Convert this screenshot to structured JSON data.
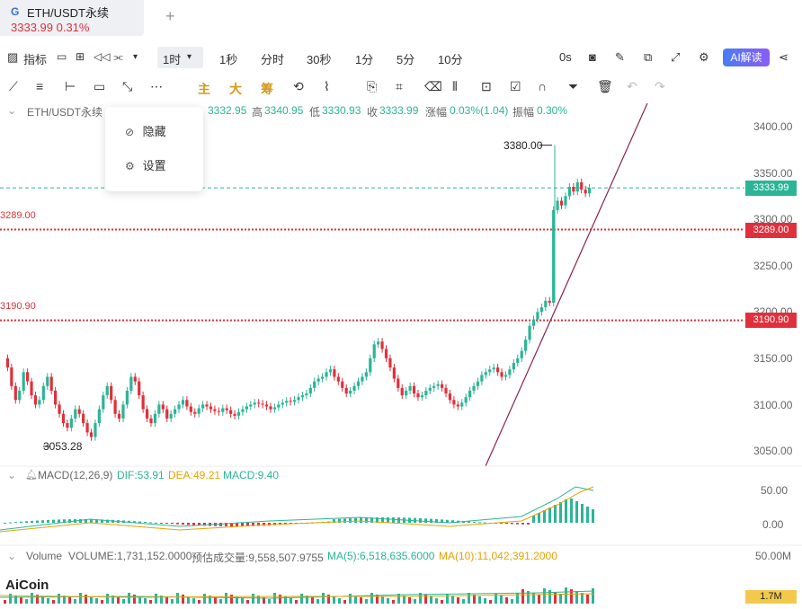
{
  "tab": {
    "logo": "G",
    "name": "ETH/USDT永续",
    "price": "3333.99  0.31%",
    "add": "+"
  },
  "toolbar1": {
    "indicator": "指标",
    "timeframes": [
      "1时",
      "1秒",
      "分时",
      "30秒",
      "1分",
      "5分",
      "10分"
    ],
    "active_tf": "1时",
    "countdown": "0s",
    "ai_label": "AI解读"
  },
  "toolbar2": {
    "chinese_tools": [
      "主",
      "大",
      "筹"
    ]
  },
  "ohlc": {
    "symbol": "ETH/USDT永续",
    "open_label": "开",
    "open": "3332.95",
    "high_label": "高",
    "high": "3340.95",
    "low_label": "低",
    "low": "3330.93",
    "close_label": "收",
    "close": "3333.99",
    "change_label": "涨幅",
    "change": "0.03%(1.04)",
    "amp_label": "振幅",
    "amp": "0.30%"
  },
  "menu": {
    "hide": "隐藏",
    "settings": "设置"
  },
  "price_axis": {
    "ticks": [
      "3400.00",
      "3350.00",
      "3300.00",
      "3250.00",
      "3200.00",
      "3150.00",
      "3100.00",
      "3050.00"
    ],
    "current": "3333.99",
    "line1": "3289.00",
    "line2": "3190.90"
  },
  "annotations": {
    "high_mark": "3380.00",
    "low_mark": "3053.28",
    "line1_left": "3289.00",
    "line2_left": "3190.90"
  },
  "macd": {
    "title": "MACD(12,26,9)",
    "dif": "DIF:53.91",
    "dea": "DEA:49.21",
    "macd": "MACD:9.40",
    "ticks": [
      "50.00",
      "0.00"
    ]
  },
  "volume": {
    "title": "Volume",
    "volume": "VOLUME:1,731,152.0000",
    "est": "预估成交量:9,558,507.9755",
    "ma5": "MA(5):6,518,635.6000",
    "ma10": "MA(10):11,042,391.2000",
    "ticks": [
      "50.00M"
    ],
    "current": "1.7M"
  },
  "brand": "AiCoin",
  "colors": {
    "up": "#2bb596",
    "down": "#e0303b",
    "trend": "#8b2252",
    "macd_dif": "#2bb596",
    "macd_dea": "#e8a200"
  },
  "chart_data": {
    "type": "candlestick",
    "price_min": 3053.28,
    "price_max": 3380.0,
    "current_price": 3333.99,
    "horizontal_lines": [
      3289.0,
      3190.9
    ]
  }
}
